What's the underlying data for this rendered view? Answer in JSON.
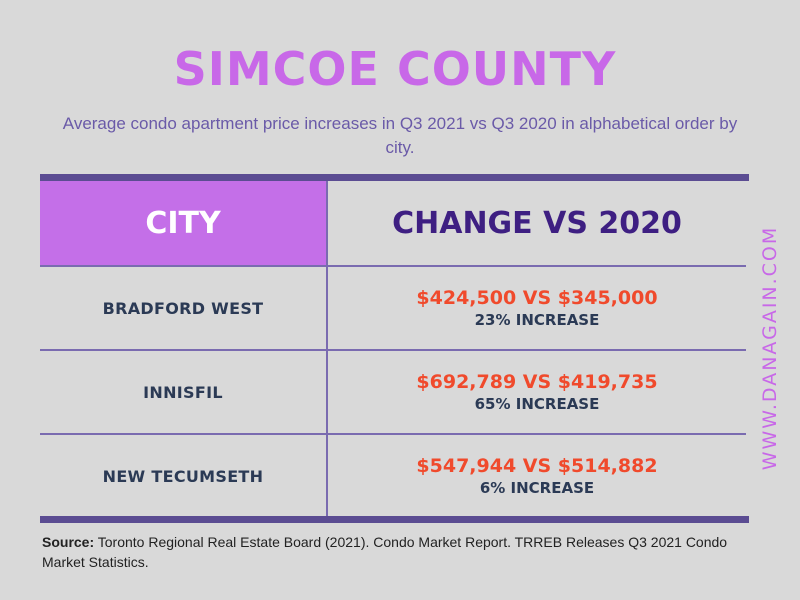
{
  "title": "SIMCOE COUNTY",
  "subtitle": "Average condo apartment price increases in Q3 2021 vs Q3 2020 in alphabetical order by city.",
  "table": {
    "headers": {
      "city": "CITY",
      "change": "CHANGE VS 2020"
    },
    "rows": [
      {
        "city": "BRADFORD WEST",
        "prices": "$424,500 VS $345,000",
        "change": "23% INCREASE"
      },
      {
        "city": "INNISFIL",
        "prices": "$692,789 VS $419,735",
        "change": "65% INCREASE"
      },
      {
        "city": "NEW TECUMSETH",
        "prices": "$547,944 VS $514,882",
        "change": "6% INCREASE"
      }
    ]
  },
  "source": {
    "label": "Source:",
    "text": " Toronto Regional Real Estate Board (2021). Condo Market Report. TRREB Releases Q3 2021 Condo Market Statistics."
  },
  "watermark": "WWW.DANAGAIN.COM",
  "colors": {
    "background": "#d9d9d9",
    "accent_purple": "#c868e8",
    "header_navy": "#3e1f82",
    "price_red": "#f04a2c",
    "rule": "#5b4c92"
  }
}
